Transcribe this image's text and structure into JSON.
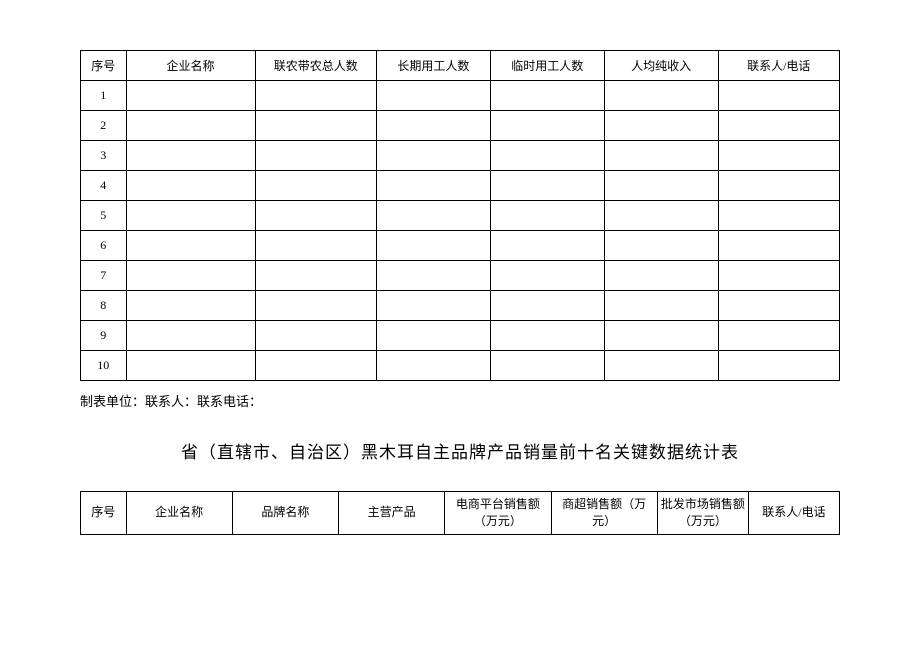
{
  "table1": {
    "headers": [
      "序号",
      "企业名称",
      "联农带农总人数",
      "长期用工人数",
      "临时用工人数",
      "人均纯收入",
      "联系人/电话"
    ],
    "rows": [
      [
        "1",
        "",
        "",
        "",
        "",
        "",
        ""
      ],
      [
        "2",
        "",
        "",
        "",
        "",
        "",
        ""
      ],
      [
        "3",
        "",
        "",
        "",
        "",
        "",
        ""
      ],
      [
        "4",
        "",
        "",
        "",
        "",
        "",
        ""
      ],
      [
        "5",
        "",
        "",
        "",
        "",
        "",
        ""
      ],
      [
        "6",
        "",
        "",
        "",
        "",
        "",
        ""
      ],
      [
        "7",
        "",
        "",
        "",
        "",
        "",
        ""
      ],
      [
        "8",
        "",
        "",
        "",
        "",
        "",
        ""
      ],
      [
        "9",
        "",
        "",
        "",
        "",
        "",
        ""
      ],
      [
        "10",
        "",
        "",
        "",
        "",
        "",
        ""
      ]
    ]
  },
  "footer": "制表单位：联系人：联系电话：",
  "title2": "省（直辖市、自治区）黑木耳自主品牌产品销量前十名关键数据统计表",
  "table2": {
    "headers": [
      "序号",
      "企业名称",
      "品牌名称",
      "主营产品",
      "电商平台销售额（万元）",
      "商超销售额（万元）",
      "批发市场销售额（万元）",
      "联系人/电话"
    ]
  }
}
